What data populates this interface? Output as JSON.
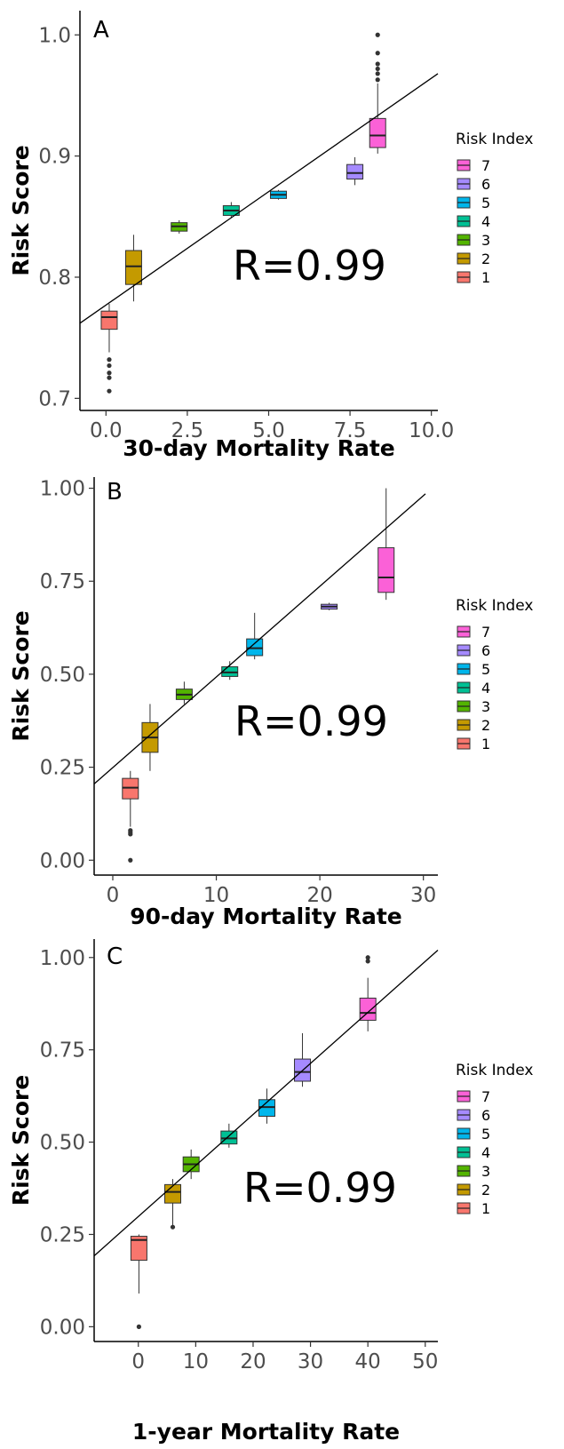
{
  "legend_title": "Risk Index",
  "legend_levels": [
    "7",
    "6",
    "5",
    "4",
    "3",
    "2",
    "1"
  ],
  "colors": {
    "1": "#F8766D",
    "2": "#C49A00",
    "3": "#53B400",
    "4": "#00C094",
    "5": "#00B6EB",
    "6": "#A58AFF",
    "7": "#FB61D7"
  },
  "chart_data": [
    {
      "type": "box",
      "panel": "A",
      "annotation": "R=0.99",
      "xlabel": "30-day Mortality Rate",
      "ylabel": "Risk Score",
      "xlim": [
        -0.8,
        10.2
      ],
      "ylim": [
        0.69,
        1.02
      ],
      "xticks": [
        0,
        2.5,
        5,
        7.5,
        10
      ],
      "xtick_labels": [
        "0.0",
        "2.5",
        "5.0",
        "7.5",
        "10.0"
      ],
      "yticks": [
        0.7,
        0.8,
        0.9,
        1.0
      ],
      "ytick_labels": [
        "0.7",
        "0.8",
        "0.9",
        "1.0"
      ],
      "regression_line": {
        "x": [
          -0.8,
          10.2
        ],
        "y": [
          0.762,
          0.968
        ]
      },
      "boxes": [
        {
          "group": "1",
          "x": 0.1,
          "min": 0.738,
          "q1": 0.757,
          "median": 0.767,
          "q3": 0.772,
          "max": 0.778,
          "outliers": [
            0.732,
            0.727,
            0.721,
            0.717,
            0.706
          ]
        },
        {
          "group": "2",
          "x": 0.85,
          "min": 0.78,
          "q1": 0.794,
          "median": 0.809,
          "q3": 0.822,
          "max": 0.835,
          "outliers": []
        },
        {
          "group": "3",
          "x": 2.25,
          "min": 0.836,
          "q1": 0.838,
          "median": 0.842,
          "q3": 0.845,
          "max": 0.847,
          "outliers": []
        },
        {
          "group": "4",
          "x": 3.85,
          "min": 0.849,
          "q1": 0.851,
          "median": 0.855,
          "q3": 0.859,
          "max": 0.862,
          "outliers": []
        },
        {
          "group": "5",
          "x": 5.3,
          "min": 0.864,
          "q1": 0.865,
          "median": 0.868,
          "q3": 0.871,
          "max": 0.872,
          "outliers": []
        },
        {
          "group": "6",
          "x": 7.65,
          "min": 0.876,
          "q1": 0.881,
          "median": 0.886,
          "q3": 0.893,
          "max": 0.899,
          "outliers": []
        },
        {
          "group": "7",
          "x": 8.35,
          "min": 0.902,
          "q1": 0.907,
          "median": 0.917,
          "q3": 0.931,
          "max": 0.96,
          "outliers": [
            0.963,
            0.968,
            0.972,
            0.976,
            0.985,
            1.0
          ]
        }
      ]
    },
    {
      "type": "box",
      "panel": "B",
      "annotation": "R=0.99",
      "xlabel": "90-day Mortality Rate",
      "ylabel": "Risk Score",
      "xlim": [
        -1.8,
        31.4
      ],
      "ylim": [
        -0.04,
        1.03
      ],
      "xticks": [
        0,
        10,
        20,
        30
      ],
      "xtick_labels": [
        "0",
        "10",
        "20",
        "30"
      ],
      "yticks": [
        0,
        0.25,
        0.5,
        0.75,
        1.0
      ],
      "ytick_labels": [
        "0.00",
        "0.25",
        "0.50",
        "0.75",
        "1.00"
      ],
      "regression_line": {
        "x": [
          -1.8,
          30.2
        ],
        "y": [
          0.205,
          0.985
        ]
      },
      "boxes": [
        {
          "group": "1",
          "x": 1.7,
          "min": 0.09,
          "q1": 0.165,
          "median": 0.195,
          "q3": 0.22,
          "max": 0.24,
          "outliers": [
            0.08,
            0.075,
            0.07,
            0.0
          ]
        },
        {
          "group": "2",
          "x": 3.6,
          "min": 0.24,
          "q1": 0.29,
          "median": 0.33,
          "q3": 0.37,
          "max": 0.42,
          "outliers": []
        },
        {
          "group": "3",
          "x": 6.9,
          "min": 0.42,
          "q1": 0.432,
          "median": 0.445,
          "q3": 0.46,
          "max": 0.48,
          "outliers": []
        },
        {
          "group": "4",
          "x": 11.3,
          "min": 0.485,
          "q1": 0.494,
          "median": 0.505,
          "q3": 0.52,
          "max": 0.535,
          "outliers": []
        },
        {
          "group": "5",
          "x": 13.7,
          "min": 0.54,
          "q1": 0.55,
          "median": 0.57,
          "q3": 0.595,
          "max": 0.665,
          "outliers": []
        },
        {
          "group": "6",
          "x": 20.9,
          "min": 0.672,
          "q1": 0.675,
          "median": 0.682,
          "q3": 0.688,
          "max": 0.692,
          "outliers": []
        },
        {
          "group": "7",
          "x": 26.4,
          "min": 0.7,
          "q1": 0.72,
          "median": 0.76,
          "q3": 0.84,
          "max": 1.0,
          "outliers": []
        }
      ]
    },
    {
      "type": "box",
      "panel": "C",
      "annotation": "R=0.99",
      "xlabel": "1-year Mortality Rate",
      "ylabel": "Risk Score",
      "xlim": [
        -7.7,
        52.2
      ],
      "ylim": [
        -0.04,
        1.05
      ],
      "xticks": [
        0,
        10,
        20,
        30,
        40,
        50
      ],
      "xtick_labels": [
        "0",
        "10",
        "20",
        "30",
        "40",
        "50"
      ],
      "yticks": [
        0,
        0.25,
        0.5,
        0.75,
        1.0
      ],
      "ytick_labels": [
        "0.00",
        "0.25",
        "0.50",
        "0.75",
        "1.00"
      ],
      "regression_line": {
        "x": [
          -7.7,
          52.2
        ],
        "y": [
          0.192,
          1.02
        ]
      },
      "boxes": [
        {
          "group": "1",
          "x": 0.1,
          "min": 0.09,
          "q1": 0.18,
          "median": 0.235,
          "q3": 0.245,
          "max": 0.25,
          "outliers": [
            0.0
          ]
        },
        {
          "group": "2",
          "x": 6.0,
          "min": 0.27,
          "q1": 0.335,
          "median": 0.365,
          "q3": 0.385,
          "max": 0.4,
          "outliers": [
            0.27
          ]
        },
        {
          "group": "3",
          "x": 9.2,
          "min": 0.4,
          "q1": 0.42,
          "median": 0.44,
          "q3": 0.46,
          "max": 0.48,
          "outliers": []
        },
        {
          "group": "4",
          "x": 15.8,
          "min": 0.485,
          "q1": 0.495,
          "median": 0.51,
          "q3": 0.53,
          "max": 0.55,
          "outliers": []
        },
        {
          "group": "5",
          "x": 22.4,
          "min": 0.55,
          "q1": 0.57,
          "median": 0.595,
          "q3": 0.615,
          "max": 0.645,
          "outliers": []
        },
        {
          "group": "6",
          "x": 28.6,
          "min": 0.65,
          "q1": 0.665,
          "median": 0.69,
          "q3": 0.725,
          "max": 0.795,
          "outliers": []
        },
        {
          "group": "7",
          "x": 40.0,
          "min": 0.8,
          "q1": 0.83,
          "median": 0.85,
          "q3": 0.89,
          "max": 0.945,
          "outliers": [
            0.99,
            1.0
          ]
        }
      ]
    }
  ]
}
